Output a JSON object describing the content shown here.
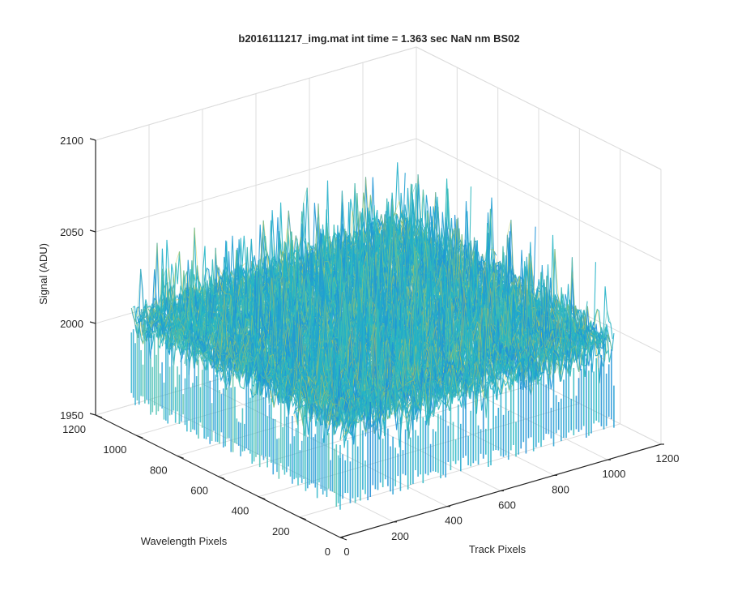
{
  "chart_data": {
    "type": "surface",
    "title": "b2016111217_img.mat int time = 1.363 sec  NaN nm BS02",
    "xlabel": "Track Pixels",
    "ylabel": "Wavelength Pixels",
    "zlabel": "Signal (ADU)",
    "xlim": [
      0,
      1200
    ],
    "ylim": [
      0,
      1200
    ],
    "zlim": [
      1950,
      2100
    ],
    "xticks": [
      "0",
      "200",
      "400",
      "600",
      "800",
      "1000",
      "1200"
    ],
    "yticks": [
      "0",
      "200",
      "400",
      "600",
      "800",
      "1000",
      "1200"
    ],
    "zticks": [
      "1950",
      "2000",
      "2050",
      "2100"
    ],
    "grid": true,
    "data_extent": {
      "x": [
        0,
        1024
      ],
      "y": [
        0,
        1024
      ]
    },
    "signal_typical": [
      1990,
      2045
    ],
    "signal_peak": 2085,
    "signal_min": 1965,
    "colormap": [
      "#0072bd",
      "#1f92d8",
      "#22b5c5",
      "#5fc3a0",
      "#a9c960",
      "#dcc43a"
    ]
  }
}
